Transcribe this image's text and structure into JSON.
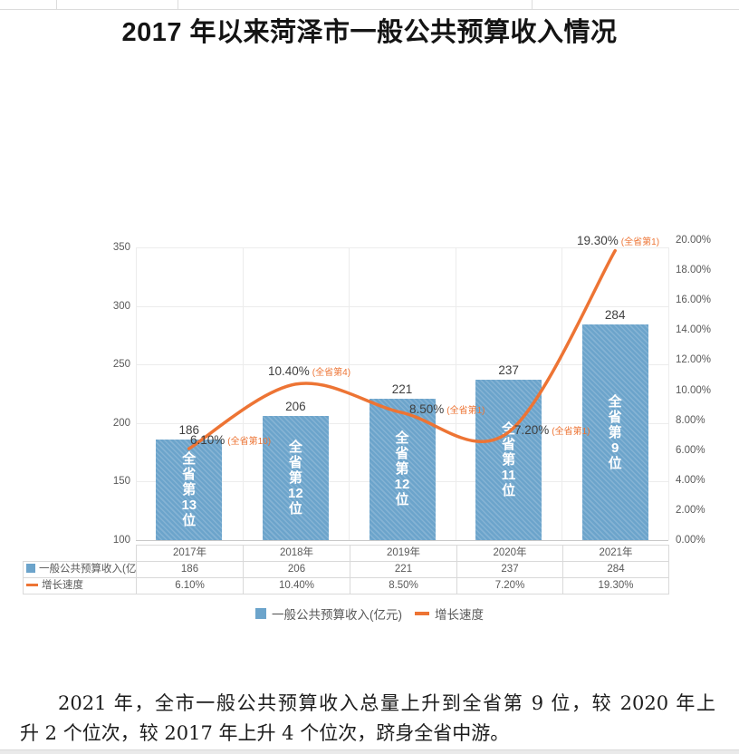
{
  "header": {
    "title": "2017 年以来菏泽市一般公共预算收入情况"
  },
  "chart_data": {
    "type": "bar+line",
    "title": "2017 年以来菏泽市一般公共预算收入情况",
    "categories": [
      "2017年",
      "2018年",
      "2019年",
      "2020年",
      "2021年"
    ],
    "series": [
      {
        "name": "一般公共预算收入(亿元)",
        "type": "bar",
        "color": "#6CA4CB",
        "values": [
          186,
          206,
          221,
          237,
          284
        ],
        "bar_rank_labels": [
          "全省第13位",
          "全省第12位",
          "全省第12位",
          "全省第11位",
          "全省第9位"
        ]
      },
      {
        "name": "增长速度",
        "type": "line",
        "color": "#ED7434",
        "values": [
          6.1,
          10.4,
          8.5,
          7.2,
          19.3
        ],
        "point_labels": [
          "6.10%",
          "10.40%",
          "8.50%",
          "7.20%",
          "19.30%"
        ],
        "point_rank_labels": [
          "(全省第10)",
          "(全省第4)",
          "(全省第1)",
          "(全省第1)",
          "(全省第1)"
        ]
      }
    ],
    "left_axis_ticks": [
      "350",
      "300",
      "250",
      "200",
      "150",
      "100"
    ],
    "left_axis_range": [
      100,
      350
    ],
    "right_axis_ticks": [
      "20.00%",
      "18.00%",
      "16.00%",
      "14.00%",
      "12.00%",
      "10.00%",
      "8.00%",
      "6.00%",
      "4.00%",
      "2.00%",
      "0.00%"
    ],
    "right_axis_range": [
      0,
      20
    ],
    "grid": true,
    "legend_position": "bottom"
  },
  "data_table": {
    "corner": "",
    "col_headers": [
      "2017年",
      "2018年",
      "2019年",
      "2020年",
      "2021年"
    ],
    "rows": [
      {
        "label": "一般公共预算收入(亿元)",
        "marker": "bar",
        "values": [
          "186",
          "206",
          "221",
          "237",
          "284"
        ]
      },
      {
        "label": "增长速度",
        "marker": "line",
        "values": [
          "6.10%",
          "10.40%",
          "8.50%",
          "7.20%",
          "19.30%"
        ]
      }
    ]
  },
  "legend": {
    "items": [
      {
        "label": "一般公共预算收入(亿元)",
        "marker": "bar",
        "color": "#6CA4CB"
      },
      {
        "label": "增长速度",
        "marker": "line",
        "color": "#ED7434"
      }
    ]
  },
  "footer_paragraph": {
    "lines": [
      "2021 年，全市一般公共预算收入总量上升到全省第 9 位，较 2020 年上",
      "升 2 个位次，较 2017 年上升 4 个位次，跻身全省中游。"
    ]
  },
  "colors": {
    "bar": "#6CA4CB",
    "line": "#ED7434",
    "grid": "#ececec",
    "axis_text": "#595959",
    "table_border": "#d9d9d9",
    "value_label": "#3f3f3f"
  }
}
